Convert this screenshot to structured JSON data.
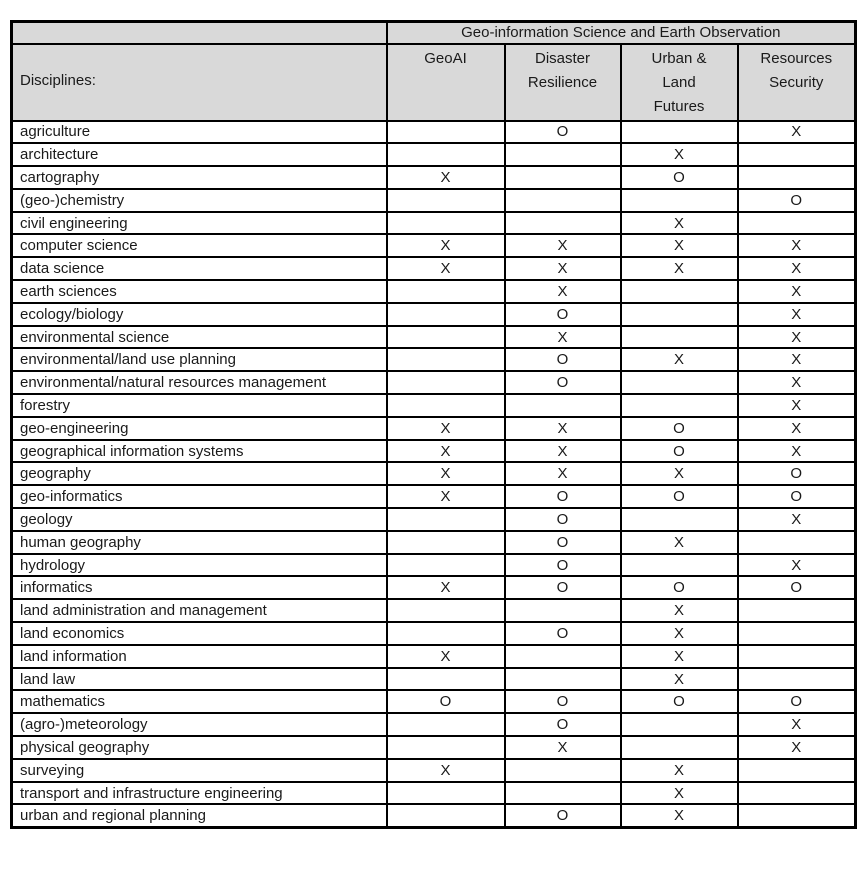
{
  "table": {
    "group_header": "Geo-information Science and Earth Observation",
    "row_header_label": "Disciplines:",
    "columns": [
      "GeoAI",
      "Disaster\nResilience",
      "Urban &\nLand\nFutures",
      "Resources\nSecurity"
    ],
    "rows": [
      {
        "discipline": "agriculture",
        "marks": [
          "",
          "O",
          "",
          "X"
        ]
      },
      {
        "discipline": "architecture",
        "marks": [
          "",
          "",
          "X",
          ""
        ]
      },
      {
        "discipline": "cartography",
        "marks": [
          "X",
          "",
          "O",
          ""
        ]
      },
      {
        "discipline": "(geo-)chemistry",
        "marks": [
          "",
          "",
          "",
          "O"
        ]
      },
      {
        "discipline": "civil engineering",
        "marks": [
          "",
          "",
          "X",
          ""
        ]
      },
      {
        "discipline": "computer science",
        "marks": [
          "X",
          "X",
          "X",
          "X"
        ]
      },
      {
        "discipline": "data science",
        "marks": [
          "X",
          "X",
          "X",
          "X"
        ]
      },
      {
        "discipline": "earth sciences",
        "marks": [
          "",
          "X",
          "",
          "X"
        ]
      },
      {
        "discipline": "ecology/biology",
        "marks": [
          "",
          "O",
          "",
          "X"
        ]
      },
      {
        "discipline": "environmental science",
        "marks": [
          "",
          "X",
          "",
          "X"
        ]
      },
      {
        "discipline": "environmental/land use planning",
        "marks": [
          "",
          "O",
          "X",
          "X"
        ]
      },
      {
        "discipline": "environmental/natural resources management",
        "marks": [
          "",
          "O",
          "",
          "X"
        ]
      },
      {
        "discipline": "forestry",
        "marks": [
          "",
          "",
          "",
          "X"
        ]
      },
      {
        "discipline": "geo-engineering",
        "marks": [
          "X",
          "X",
          "O",
          "X"
        ]
      },
      {
        "discipline": "geographical information systems",
        "marks": [
          "X",
          "X",
          "O",
          "X"
        ]
      },
      {
        "discipline": "geography",
        "marks": [
          "X",
          "X",
          "X",
          "O"
        ]
      },
      {
        "discipline": "geo-informatics",
        "marks": [
          "X",
          "O",
          "O",
          "O"
        ]
      },
      {
        "discipline": "geology",
        "marks": [
          "",
          "O",
          "",
          "X"
        ]
      },
      {
        "discipline": "human geography",
        "marks": [
          "",
          "O",
          "X",
          ""
        ]
      },
      {
        "discipline": "hydrology",
        "marks": [
          "",
          "O",
          "",
          "X"
        ]
      },
      {
        "discipline": "informatics",
        "marks": [
          "X",
          "O",
          "O",
          "O"
        ]
      },
      {
        "discipline": "land administration and management",
        "marks": [
          "",
          "",
          "X",
          ""
        ]
      },
      {
        "discipline": "land economics",
        "marks": [
          "",
          "O",
          "X",
          ""
        ]
      },
      {
        "discipline": "land information",
        "marks": [
          "X",
          "",
          "X",
          ""
        ]
      },
      {
        "discipline": "land law",
        "marks": [
          "",
          "",
          "X",
          ""
        ]
      },
      {
        "discipline": "mathematics",
        "marks": [
          "O",
          "O",
          "O",
          "O"
        ]
      },
      {
        "discipline": "(agro-)meteorology",
        "marks": [
          "",
          "O",
          "",
          "X"
        ]
      },
      {
        "discipline": "physical geography",
        "marks": [
          "",
          "X",
          "",
          "X"
        ]
      },
      {
        "discipline": "surveying",
        "marks": [
          "X",
          "",
          "X",
          ""
        ]
      },
      {
        "discipline": "transport and infrastructure engineering",
        "marks": [
          "",
          "",
          "X",
          ""
        ]
      },
      {
        "discipline": "urban and regional planning",
        "marks": [
          "",
          "O",
          "X",
          ""
        ]
      }
    ]
  },
  "colors": {
    "header_bg": "#d9d9d9",
    "border": "#000000",
    "text": "#1a1a1a"
  }
}
